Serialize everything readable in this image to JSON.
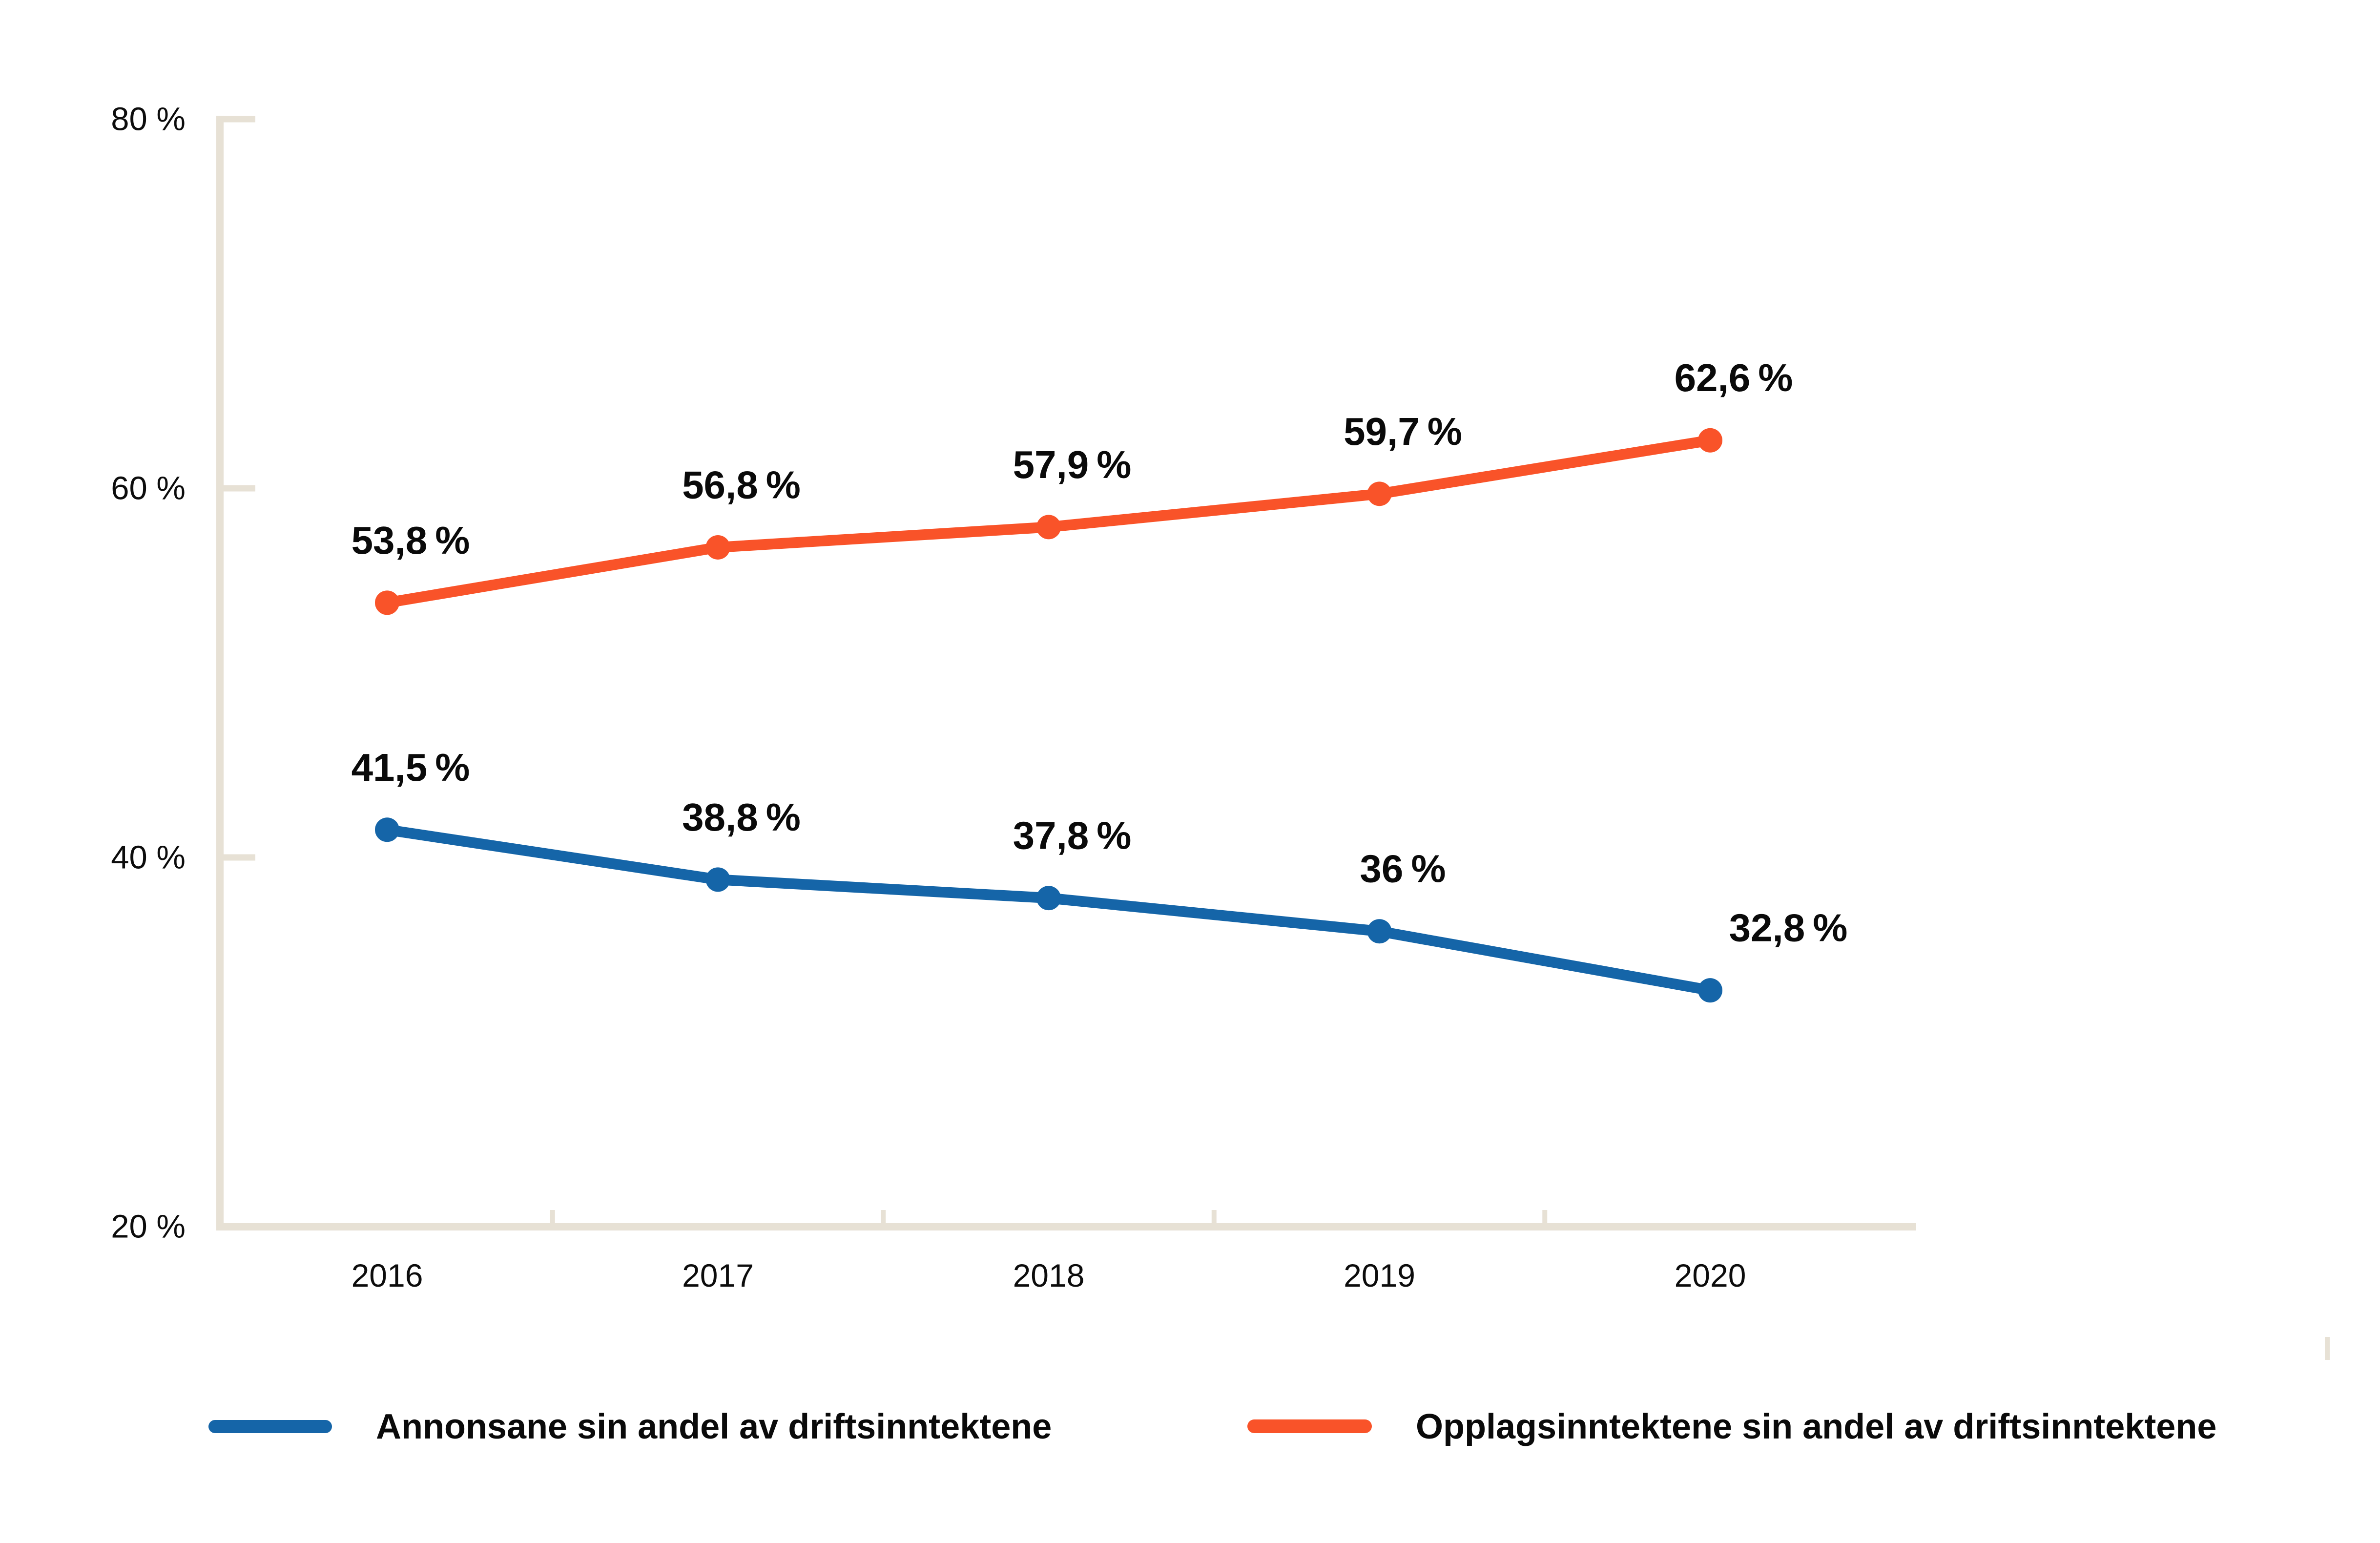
{
  "colors": {
    "background": "#ffffff",
    "axis": "#e7e1d5",
    "text": "#0c0c0c",
    "series_blue": "#1565a8",
    "series_orange": "#f95329"
  },
  "chart_data": {
    "type": "line",
    "title": "",
    "xlabel": "",
    "ylabel": "",
    "categories": [
      "2016",
      "2017",
      "2018",
      "2019",
      "2020"
    ],
    "series": [
      {
        "name": "Annonsane sin andel av driftsinntektene",
        "color": "#1565a8",
        "values": [
          41.5,
          38.8,
          37.8,
          36,
          32.8
        ],
        "point_labels": [
          "41,5 %",
          "38,8 %",
          "37,8 %",
          "36 %",
          "32,8 %"
        ]
      },
      {
        "name": "Opplagsinntektene sin andel av driftsinntektene",
        "color": "#f95329",
        "values": [
          53.8,
          56.8,
          57.9,
          59.7,
          62.6
        ],
        "point_labels": [
          "53,8 %",
          "56,8 %",
          "57,9 %",
          "59,7 %",
          "62,6 %"
        ]
      }
    ],
    "y_axis": {
      "ticks": [
        {
          "value": 80,
          "label": "80 %"
        },
        {
          "value": 60,
          "label": "60 %"
        },
        {
          "value": 40,
          "label": "40 %"
        },
        {
          "value": 20,
          "label": "20 %"
        }
      ]
    },
    "ylim": [
      20,
      80
    ],
    "grid": false,
    "legend_position": "bottom"
  }
}
